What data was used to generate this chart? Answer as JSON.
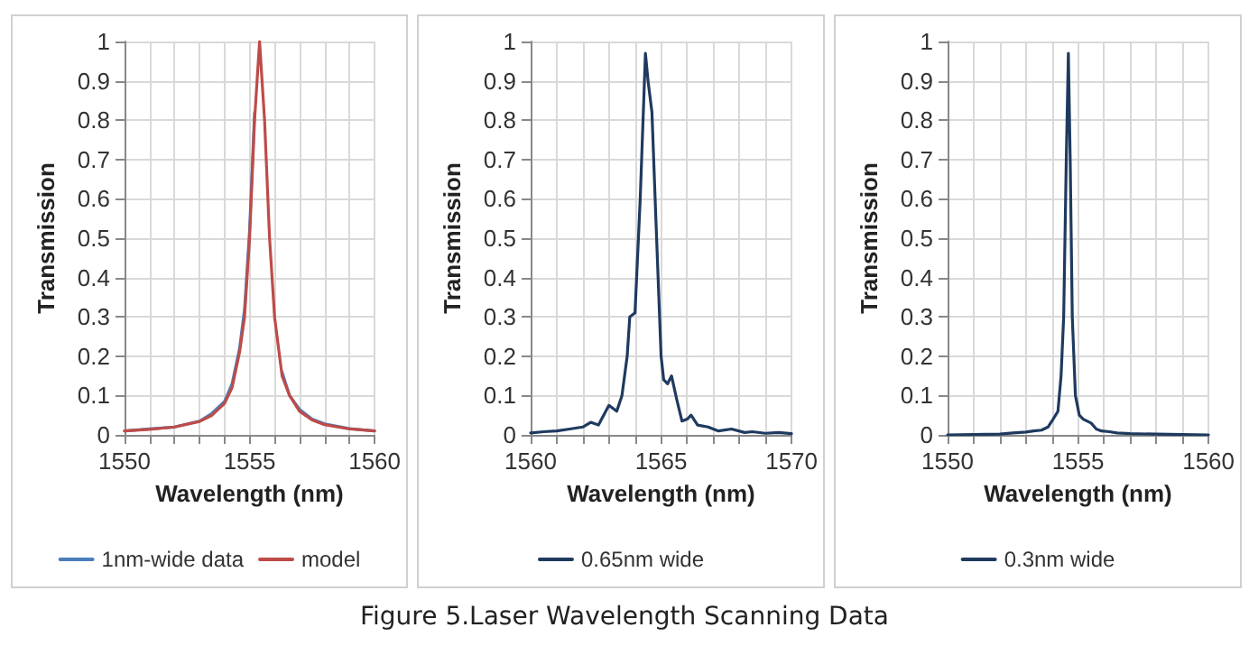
{
  "chart_data": [
    {
      "type": "line",
      "xlabel": "Wavelength (nm)",
      "ylabel": "Transmission",
      "xlim": [
        1550,
        1560
      ],
      "ylim": [
        0,
        1
      ],
      "xticks": [
        1550,
        {
          "value": 1551,
          "label": null
        },
        {
          "value": 1552,
          "label": null
        },
        {
          "value": 1553,
          "label": null
        },
        {
          "value": 1554,
          "label": null
        },
        1555,
        {
          "value": 1556,
          "label": null
        },
        {
          "value": 1557,
          "label": null
        },
        {
          "value": 1558,
          "label": null
        },
        {
          "value": 1559,
          "label": null
        },
        1560
      ],
      "yticks": [
        0,
        0.1,
        0.2,
        0.3,
        0.4,
        0.5,
        0.6,
        0.7,
        0.8,
        0.9,
        1
      ],
      "grid": true,
      "legend": "bottom",
      "marker": "none",
      "line_style": "solid",
      "series": [
        {
          "name": "1nm-wide data",
          "color": "#4a7ebb",
          "x": [
            1550,
            1551,
            1552,
            1553,
            1553.5,
            1554,
            1554.3,
            1554.6,
            1554.8,
            1555,
            1555.2,
            1555.4,
            1555.6,
            1555.8,
            1556,
            1556.3,
            1556.6,
            1557,
            1557.5,
            1558,
            1559,
            1560
          ],
          "values": [
            0.01,
            0.015,
            0.02,
            0.035,
            0.055,
            0.085,
            0.13,
            0.22,
            0.32,
            0.52,
            0.82,
            null,
            null,
            null,
            null,
            0.16,
            0.1,
            0.065,
            0.04,
            0.028,
            0.016,
            0.01
          ]
        },
        {
          "name": "model",
          "color": "#be4b48",
          "x": [
            1550,
            1551,
            1552,
            1553,
            1553.5,
            1554,
            1554.3,
            1554.6,
            1554.8,
            1555,
            1555.2,
            1555.4,
            1555.6,
            1555.8,
            1556,
            1556.3,
            1556.6,
            1557,
            1557.5,
            1558,
            1559,
            1560
          ],
          "values": [
            0.01,
            0.014,
            0.02,
            0.034,
            0.05,
            0.08,
            0.12,
            0.21,
            0.3,
            0.5,
            0.8,
            1,
            0.8,
            0.5,
            0.3,
            0.15,
            0.1,
            0.06,
            0.038,
            0.026,
            0.015,
            0.01
          ]
        }
      ],
      "annotations": [
        "Figure 5.Laser Wavelength Scanning Data"
      ]
    },
    {
      "type": "line",
      "xlabel": "Wavelength (nm)",
      "ylabel": "Transmission",
      "xlim": [
        1560,
        1570
      ],
      "ylim": [
        0,
        1
      ],
      "xticks": [
        1560,
        {
          "value": 1561,
          "label": null
        },
        {
          "value": 1562,
          "label": null
        },
        {
          "value": 1563,
          "label": null
        },
        {
          "value": 1564,
          "label": null
        },
        1565,
        {
          "value": 1566,
          "label": null
        },
        {
          "value": 1567,
          "label": null
        },
        {
          "value": 1568,
          "label": null
        },
        {
          "value": 1569,
          "label": null
        },
        1570
      ],
      "yticks": [
        0,
        0.1,
        0.2,
        0.3,
        0.4,
        0.5,
        0.6,
        0.7,
        0.8,
        0.9,
        1
      ],
      "grid": true,
      "legend": "bottom",
      "marker": "none",
      "line_style": "solid",
      "series": [
        {
          "name": "0.65nm wide",
          "color": "#1f3a5f",
          "x": [
            1560,
            1560.5,
            1561,
            1561.5,
            1562,
            1562.3,
            1562.6,
            1563,
            1563.3,
            1563.5,
            1563.7,
            1563.8,
            1564,
            1564.2,
            1564.4,
            1564.5,
            1564.65,
            1564.8,
            1565,
            1565.1,
            1565.25,
            1565.4,
            1565.6,
            1565.8,
            1566,
            1566.15,
            1566.4,
            1566.8,
            1567.2,
            1567.7,
            1568.2,
            1568.5,
            1569,
            1569.5,
            1570
          ],
          "values": [
            0.005,
            0.008,
            0.01,
            0.015,
            0.02,
            0.032,
            0.025,
            0.075,
            0.06,
            0.1,
            0.2,
            0.3,
            0.31,
            0.6,
            0.97,
            0.9,
            0.82,
            0.55,
            0.2,
            0.14,
            0.13,
            0.15,
            0.09,
            0.035,
            0.04,
            0.05,
            0.025,
            0.02,
            0.01,
            0.015,
            0.006,
            0.008,
            0.004,
            0.006,
            0.003
          ]
        }
      ]
    },
    {
      "type": "line",
      "xlabel": "Wavelength (nm)",
      "ylabel": "Transmission",
      "xlim": [
        1550,
        1560
      ],
      "ylim": [
        0,
        1
      ],
      "xticks": [
        1550,
        {
          "value": 1551,
          "label": null
        },
        {
          "value": 1552,
          "label": null
        },
        {
          "value": 1553,
          "label": null
        },
        {
          "value": 1554,
          "label": null
        },
        1555,
        {
          "value": 1556,
          "label": null
        },
        {
          "value": 1557,
          "label": null
        },
        {
          "value": 1558,
          "label": null
        },
        {
          "value": 1559,
          "label": null
        },
        1560
      ],
      "yticks": [
        0,
        0.1,
        0.2,
        0.3,
        0.4,
        0.5,
        0.6,
        0.7,
        0.8,
        0.9,
        1
      ],
      "grid": true,
      "legend": "bottom",
      "marker": "none",
      "line_style": "solid",
      "series": [
        {
          "name": "0.3nm wide",
          "color": "#1f3a5f",
          "x": [
            1550,
            1551,
            1552,
            1552.5,
            1553,
            1553.3,
            1553.6,
            1553.85,
            1554,
            1554.23,
            1554.35,
            1554.45,
            1554.55,
            1554.63,
            1554.7,
            1554.78,
            1554.9,
            1555.05,
            1555.2,
            1555.5,
            1555.7,
            1555.9,
            1556.2,
            1556.5,
            1557,
            1558,
            1559,
            1560
          ],
          "values": [
            0,
            0.001,
            0.002,
            0.005,
            0.007,
            0.01,
            0.012,
            0.02,
            0.035,
            0.06,
            0.15,
            0.3,
            0.7,
            0.97,
            0.7,
            0.3,
            0.1,
            0.05,
            0.04,
            0.03,
            0.015,
            0.01,
            0.008,
            0.005,
            0.003,
            0.002,
            0.001,
            0
          ]
        }
      ]
    }
  ]
}
